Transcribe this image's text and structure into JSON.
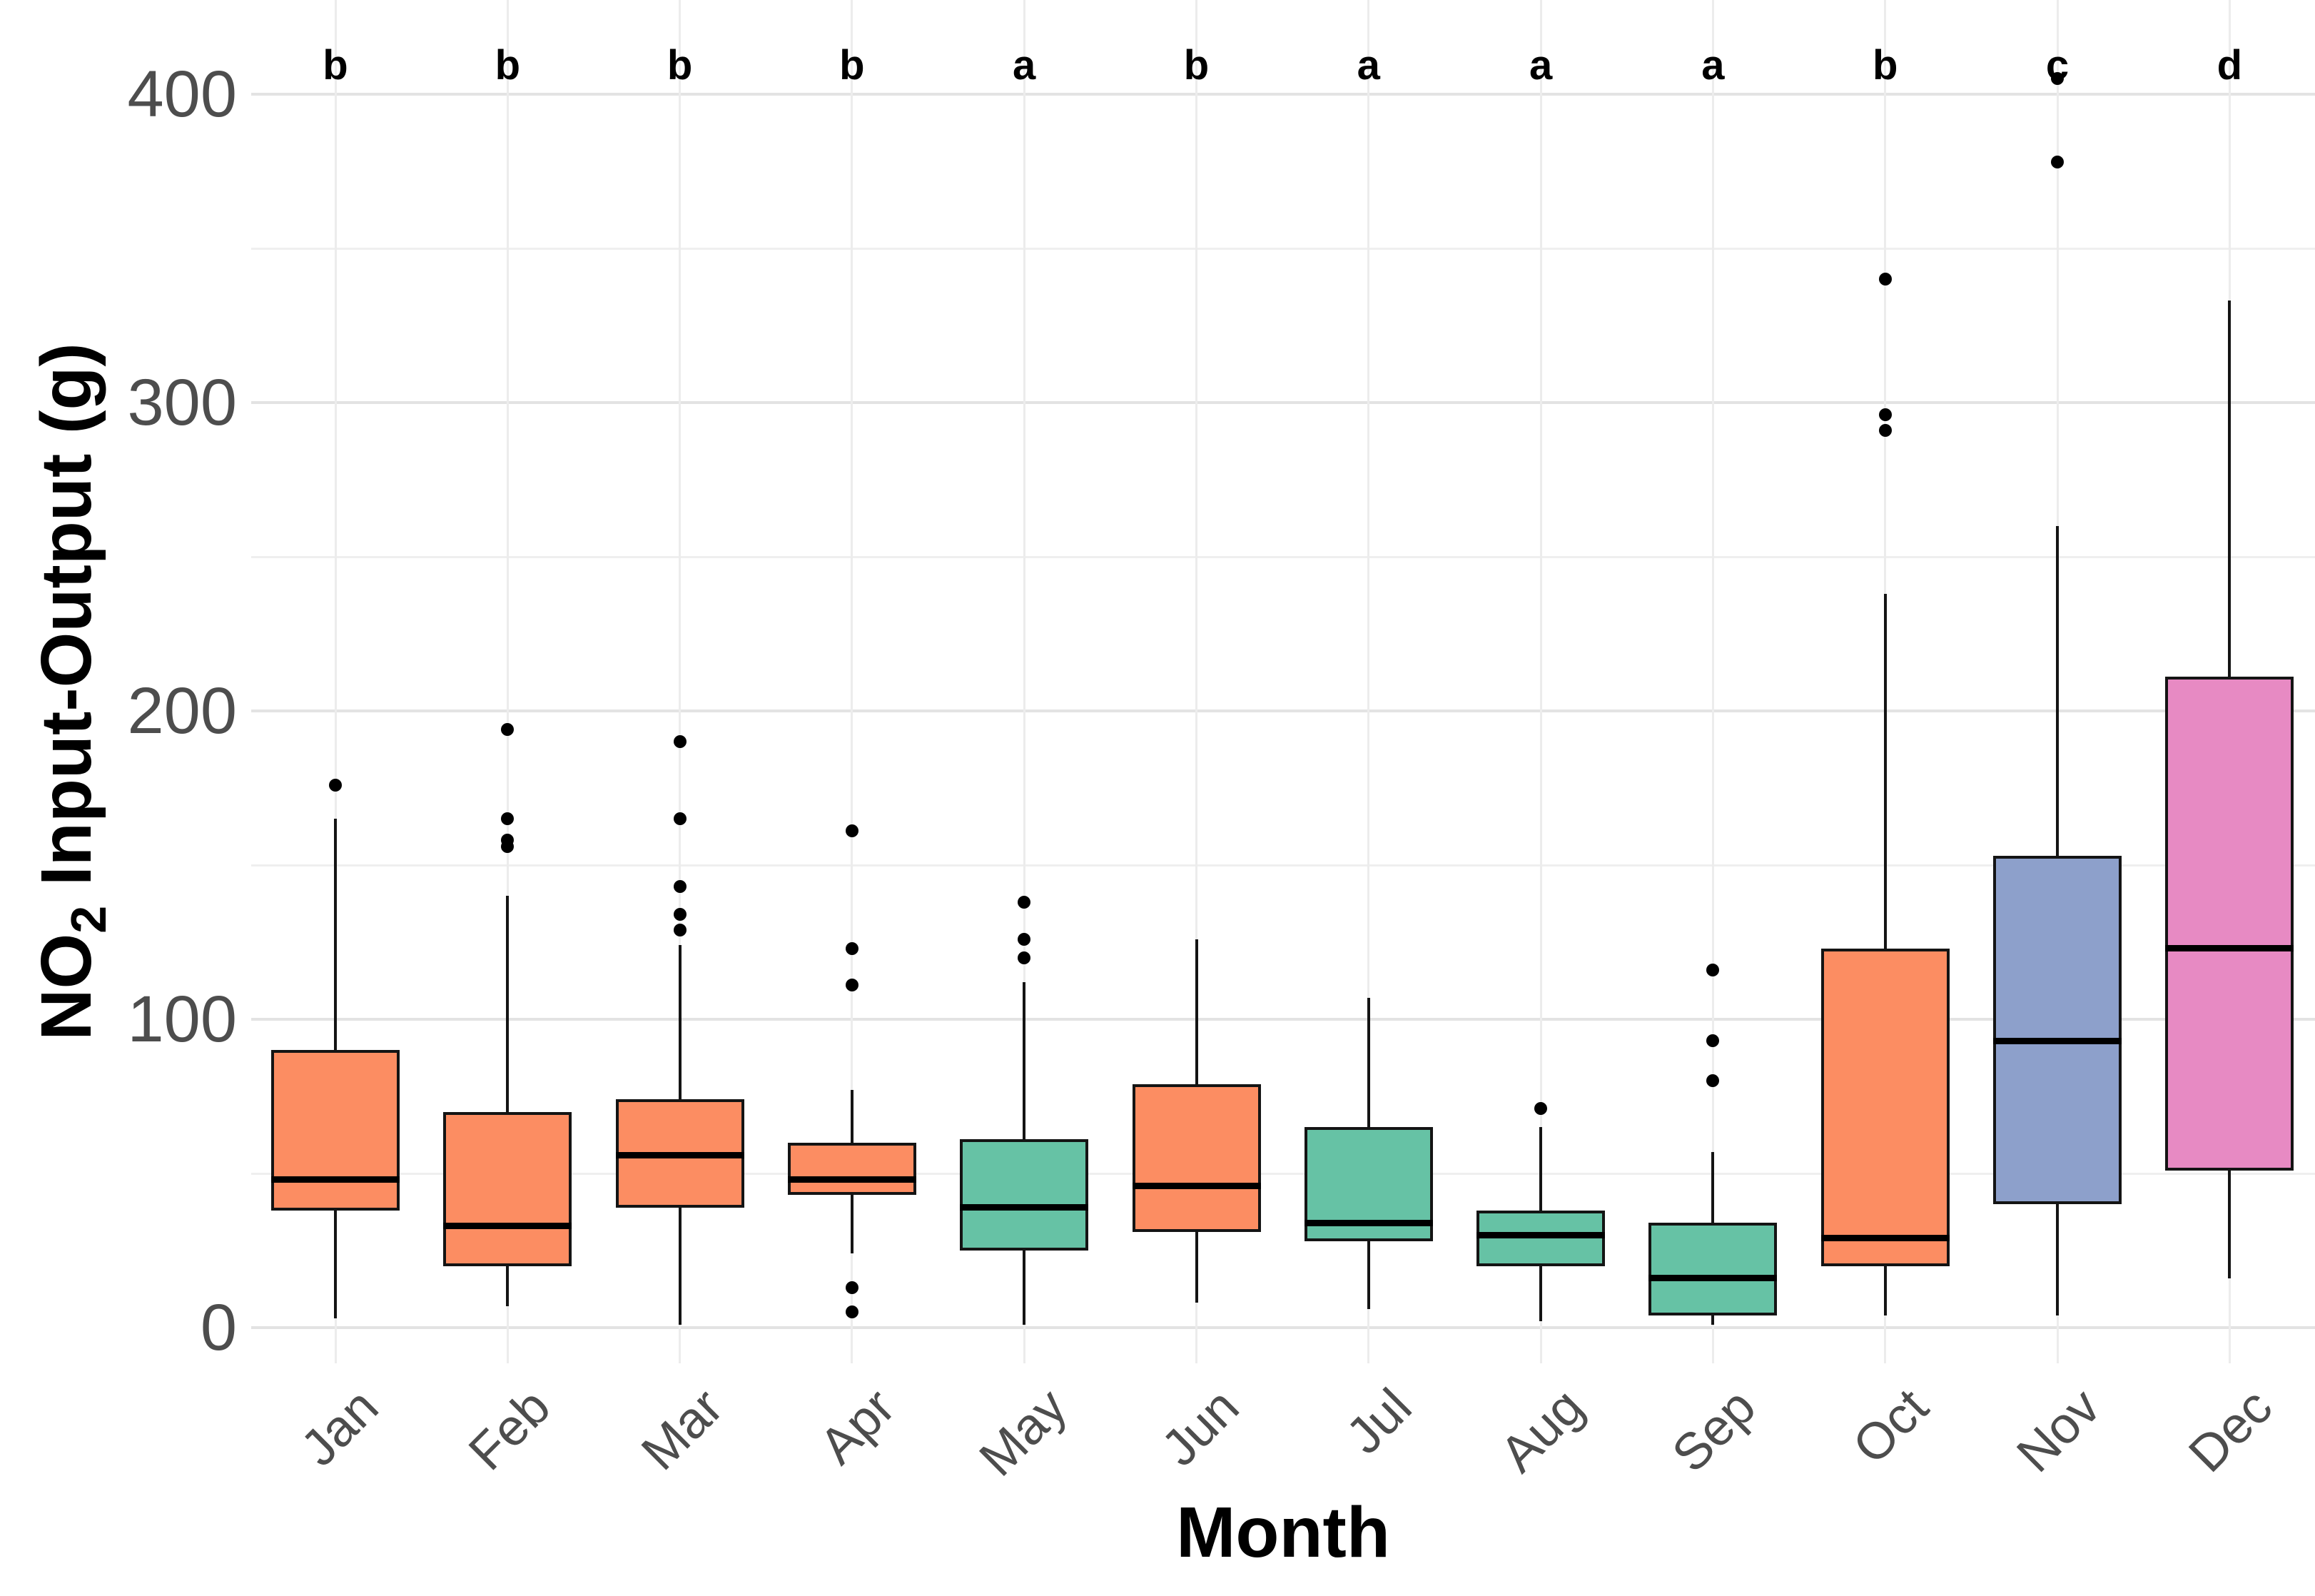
{
  "figure": {
    "background": "#FFFFFF",
    "x_axis_title": "Month",
    "y_axis_title_prefix": "NO",
    "y_axis_title_sub": "2",
    "y_axis_title_suffix": " Input-Output (g)",
    "tick_label_color": "#4D4D4D",
    "text_color": "#000000"
  },
  "chart_data": {
    "type": "boxplot",
    "title": "",
    "xlabel": "Month",
    "ylabel": "NO2 Input-Output (g)",
    "ylim": [
      -12,
      430
    ],
    "yticks": [
      0,
      100,
      200,
      300,
      400
    ],
    "minor_gridlines": [
      50,
      150,
      250,
      350
    ],
    "grid": "on",
    "legend": "none",
    "categories": [
      "Jan",
      "Feb",
      "Mar",
      "Apr",
      "May",
      "Jun",
      "Jul",
      "Aug",
      "Sep",
      "Oct",
      "Nov",
      "Dec"
    ],
    "significance_letters": [
      "b",
      "b",
      "b",
      "b",
      "a",
      "b",
      "a",
      "a",
      "a",
      "b",
      "c",
      "d"
    ],
    "group_colors": {
      "a": "#66C2A5",
      "b": "#FC8D62",
      "c": "#8DA0CB",
      "d": "#E78AC3"
    },
    "box_border_color": "#141414",
    "median_color": "#000000",
    "outlier_color": "#000000",
    "series": [
      {
        "name": "Jan",
        "letter": "b",
        "color_key": "b",
        "whisker_low": 3,
        "q1": 38,
        "median": 48,
        "q3": 90,
        "whisker_high": 165,
        "outliers": [
          176
        ]
      },
      {
        "name": "Feb",
        "letter": "b",
        "color_key": "b",
        "whisker_low": 7,
        "q1": 20,
        "median": 33,
        "q3": 70,
        "whisker_high": 140,
        "outliers": [
          156,
          158,
          165,
          194
        ]
      },
      {
        "name": "Mar",
        "letter": "b",
        "color_key": "b",
        "whisker_low": 1,
        "q1": 39,
        "median": 56,
        "q3": 74,
        "whisker_high": 124,
        "outliers": [
          129,
          134,
          143,
          165,
          190
        ]
      },
      {
        "name": "Apr",
        "letter": "b",
        "color_key": "b",
        "whisker_low": 24,
        "q1": 43,
        "median": 48,
        "q3": 60,
        "whisker_high": 77,
        "outliers": [
          5,
          13,
          111,
          123,
          161
        ]
      },
      {
        "name": "May",
        "letter": "a",
        "color_key": "a",
        "whisker_low": 1,
        "q1": 25,
        "median": 39,
        "q3": 61,
        "whisker_high": 112,
        "outliers": [
          120,
          126,
          138
        ]
      },
      {
        "name": "Jun",
        "letter": "b",
        "color_key": "b",
        "whisker_low": 8,
        "q1": 31,
        "median": 46,
        "q3": 79,
        "whisker_high": 126,
        "outliers": []
      },
      {
        "name": "Jul",
        "letter": "a",
        "color_key": "a",
        "whisker_low": 6,
        "q1": 28,
        "median": 34,
        "q3": 65,
        "whisker_high": 107,
        "outliers": []
      },
      {
        "name": "Aug",
        "letter": "a",
        "color_key": "a",
        "whisker_low": 2,
        "q1": 20,
        "median": 30,
        "q3": 38,
        "whisker_high": 65,
        "outliers": [
          71
        ]
      },
      {
        "name": "Sep",
        "letter": "a",
        "color_key": "a",
        "whisker_low": 1,
        "q1": 4,
        "median": 16,
        "q3": 34,
        "whisker_high": 57,
        "outliers": [
          80,
          93,
          116
        ]
      },
      {
        "name": "Oct",
        "letter": "b",
        "color_key": "b",
        "whisker_low": 4,
        "q1": 20,
        "median": 29,
        "q3": 123,
        "whisker_high": 238,
        "outliers": [
          291,
          296,
          340
        ]
      },
      {
        "name": "Nov",
        "letter": "c",
        "color_key": "c",
        "whisker_low": 4,
        "q1": 40,
        "median": 93,
        "q3": 153,
        "whisker_high": 260,
        "outliers": [
          378,
          405
        ]
      },
      {
        "name": "Dec",
        "letter": "d",
        "color_key": "d",
        "whisker_low": 16,
        "q1": 51,
        "median": 123,
        "q3": 211,
        "whisker_high": 333,
        "outliers": []
      }
    ]
  }
}
